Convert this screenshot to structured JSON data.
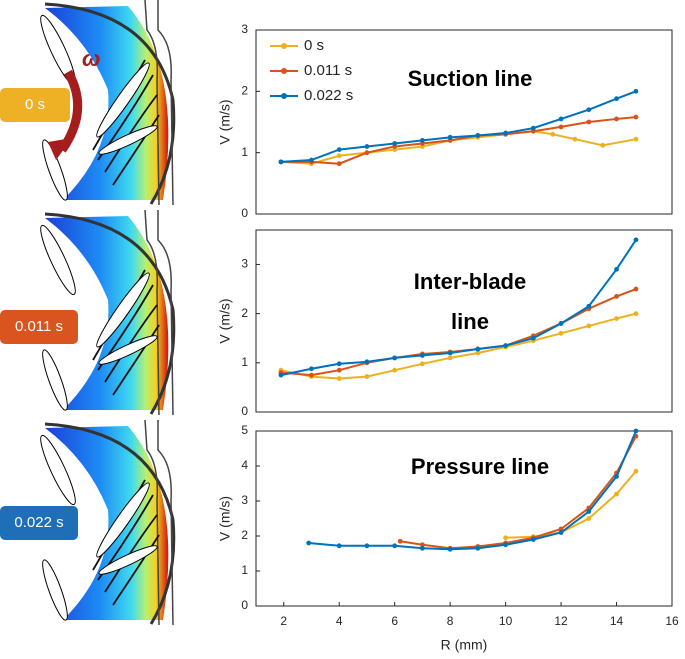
{
  "panels": [
    {
      "label": "0 s",
      "color": "#eeb024"
    },
    {
      "label": "0.011 s",
      "color": "#d9541e"
    },
    {
      "label": "0.022 s",
      "color": "#1e6fb8"
    }
  ],
  "omega": "ω",
  "chart_data": [
    {
      "type": "line",
      "annotation": [
        "Suction line"
      ],
      "ylabel": "V (m/s)",
      "xlim": [
        1,
        16
      ],
      "ylim": [
        0,
        3
      ],
      "yticks": [
        0,
        1,
        2,
        3
      ],
      "legend": "upper left",
      "series": [
        {
          "name": "0 s",
          "color": "#edb120",
          "x": [
            1.9,
            3,
            4,
            5,
            6,
            7,
            8,
            9,
            10,
            11,
            11.7,
            12.5,
            13.5,
            14.7
          ],
          "values": [
            0.85,
            0.82,
            0.95,
            1.0,
            1.05,
            1.1,
            1.2,
            1.25,
            1.3,
            1.35,
            1.3,
            1.22,
            1.12,
            1.22
          ]
        },
        {
          "name": "0.011 s",
          "color": "#d95319",
          "x": [
            1.9,
            3,
            4,
            5,
            6,
            7,
            8,
            9,
            10,
            11,
            12,
            13,
            14,
            14.7
          ],
          "values": [
            0.85,
            0.85,
            0.82,
            1.0,
            1.1,
            1.15,
            1.2,
            1.28,
            1.3,
            1.35,
            1.42,
            1.5,
            1.55,
            1.58
          ]
        },
        {
          "name": "0.022 s",
          "color": "#0072bd",
          "x": [
            1.9,
            3,
            4,
            5,
            6,
            7,
            8,
            9,
            10,
            11,
            12,
            13,
            14,
            14.7
          ],
          "values": [
            0.85,
            0.88,
            1.05,
            1.1,
            1.15,
            1.2,
            1.25,
            1.28,
            1.32,
            1.4,
            1.55,
            1.7,
            1.88,
            2.0
          ]
        }
      ]
    },
    {
      "type": "line",
      "annotation": [
        "Inter-blade",
        "line"
      ],
      "ylabel": "V (m/s)",
      "xlim": [
        1,
        16
      ],
      "ylim": [
        0,
        3.7
      ],
      "yticks": [
        0,
        1,
        2,
        3
      ],
      "series": [
        {
          "color": "#edb120",
          "x": [
            1.9,
            3,
            4,
            5,
            6,
            7,
            8,
            9,
            10,
            11,
            12,
            13,
            14,
            14.7
          ],
          "values": [
            0.85,
            0.72,
            0.68,
            0.72,
            0.85,
            0.98,
            1.1,
            1.2,
            1.32,
            1.45,
            1.6,
            1.75,
            1.9,
            2.0
          ]
        },
        {
          "color": "#d95319",
          "x": [
            1.9,
            3,
            4,
            5,
            6,
            7,
            8,
            9,
            10,
            11,
            12,
            13,
            14,
            14.7
          ],
          "values": [
            0.8,
            0.75,
            0.85,
            1.0,
            1.1,
            1.18,
            1.22,
            1.28,
            1.35,
            1.55,
            1.8,
            2.1,
            2.35,
            2.5
          ]
        },
        {
          "color": "#0072bd",
          "x": [
            1.9,
            3,
            4,
            5,
            6,
            7,
            8,
            9,
            10,
            11,
            12,
            13,
            14,
            14.7
          ],
          "values": [
            0.75,
            0.88,
            0.98,
            1.02,
            1.1,
            1.15,
            1.2,
            1.28,
            1.35,
            1.5,
            1.8,
            2.15,
            2.9,
            3.5
          ]
        }
      ]
    },
    {
      "type": "line",
      "annotation": [
        "Pressure line"
      ],
      "ylabel": "V (m/s)",
      "xlabel": "R (mm)",
      "xlim": [
        1,
        16
      ],
      "ylim": [
        0,
        5
      ],
      "yticks": [
        0,
        1,
        2,
        3,
        4,
        5
      ],
      "xticks": [
        2,
        4,
        6,
        8,
        10,
        12,
        14,
        16
      ],
      "series": [
        {
          "color": "#edb120",
          "x": [
            10,
            11,
            12,
            13,
            14,
            14.7
          ],
          "values": [
            1.95,
            1.98,
            2.1,
            2.5,
            3.2,
            3.85
          ]
        },
        {
          "color": "#d95319",
          "x": [
            6.2,
            7,
            8,
            9,
            10,
            11,
            12,
            13,
            14,
            14.7
          ],
          "values": [
            1.85,
            1.75,
            1.65,
            1.7,
            1.8,
            1.95,
            2.2,
            2.8,
            3.8,
            4.85
          ]
        },
        {
          "color": "#0072bd",
          "x": [
            2.9,
            4,
            5,
            6,
            7,
            8,
            9,
            10,
            11,
            12,
            13,
            14,
            14.7
          ],
          "values": [
            1.8,
            1.72,
            1.72,
            1.72,
            1.65,
            1.62,
            1.65,
            1.75,
            1.9,
            2.1,
            2.7,
            3.7,
            5.0
          ]
        }
      ]
    }
  ]
}
